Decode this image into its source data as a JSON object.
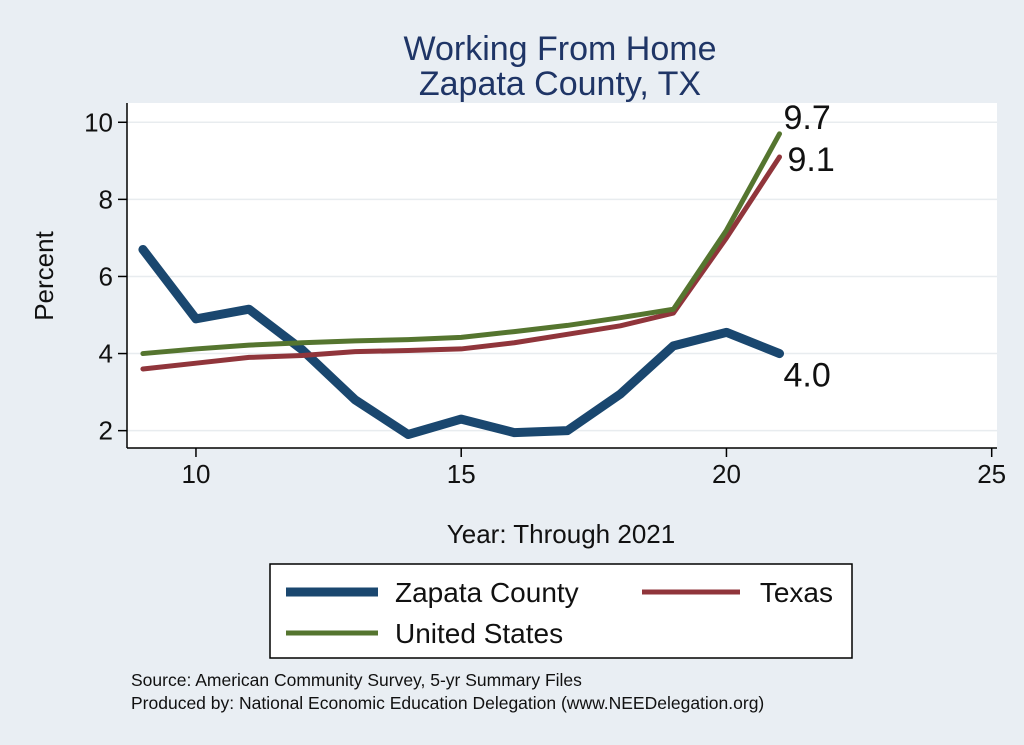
{
  "chart_data": {
    "type": "line",
    "title": [
      "Working From Home",
      "Zapata County, TX"
    ],
    "xlabel": "Year: Through 2021",
    "ylabel": "Percent",
    "xlim": [
      8.7,
      25.1
    ],
    "ylim": [
      1.55,
      10.5
    ],
    "xticks": [
      10,
      15,
      20,
      25
    ],
    "yticks": [
      2,
      4,
      6,
      8,
      10
    ],
    "grid": true,
    "legend_position": "bottom",
    "series": [
      {
        "name": "Zapata County",
        "color": "#1a476f",
        "x": [
          9,
          10,
          11,
          12,
          13,
          14,
          15,
          16,
          17,
          18,
          19,
          20,
          21
        ],
        "values": [
          6.7,
          4.9,
          5.15,
          4.1,
          2.8,
          1.9,
          2.3,
          1.95,
          2.0,
          2.95,
          4.2,
          4.55,
          4.0
        ],
        "end_label": "4.0"
      },
      {
        "name": "Texas",
        "color": "#90353b",
        "x": [
          9,
          10,
          11,
          12,
          13,
          14,
          15,
          16,
          17,
          18,
          19,
          20,
          21
        ],
        "values": [
          3.6,
          3.75,
          3.9,
          3.95,
          4.05,
          4.08,
          4.12,
          4.28,
          4.5,
          4.72,
          5.05,
          7.0,
          9.1
        ],
        "end_label": "9.1"
      },
      {
        "name": "United States",
        "color": "#55752f",
        "x": [
          9,
          10,
          11,
          12,
          13,
          14,
          15,
          16,
          17,
          18,
          19,
          20,
          21
        ],
        "values": [
          4.0,
          4.12,
          4.22,
          4.28,
          4.33,
          4.36,
          4.42,
          4.57,
          4.73,
          4.93,
          5.15,
          7.2,
          9.7
        ],
        "end_label": "9.7"
      }
    ]
  },
  "footer": {
    "source": "Source: American Community Survey, 5-yr Summary Files",
    "produced": "Produced by: National Economic Education Delegation (www.NEEDelegation.org)"
  }
}
